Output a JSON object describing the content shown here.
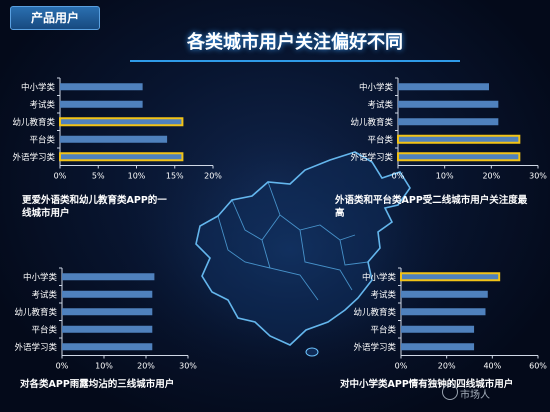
{
  "header": {
    "section_tag": "产品用户",
    "title": "各类城市用户关注偏好不同"
  },
  "captions": {
    "top_left": "更爱外语类和幼儿教育类APP的一线城市用户",
    "top_right": "外语类和平台类APP受二线城市用户关注度最高",
    "bottom_left": "对各类APP雨露均沾的三线城市用户",
    "bottom_right": "对中小学类APP情有独钟的四线城市用户"
  },
  "watermark": "市场人",
  "colors": {
    "bar": "#4f81bd",
    "highlight_border": "#f2c316",
    "axis": "#d0d8e6",
    "text": "#ffffff",
    "title_underline": "#2f9be8"
  },
  "chart_data": [
    {
      "type": "bar",
      "orientation": "horizontal",
      "categories": [
        "中小学类",
        "考试类",
        "幼儿教育类",
        "平台类",
        "外语学习类"
      ],
      "values": [
        10.8,
        10.8,
        16.0,
        14.0,
        16.0
      ],
      "highlight": [
        false,
        false,
        true,
        false,
        true
      ],
      "xlim": [
        0,
        20
      ],
      "ticks": [
        "0%",
        "5%",
        "10%",
        "15%",
        "20%"
      ],
      "tick_values": [
        0,
        5,
        10,
        15,
        20
      ]
    },
    {
      "type": "bar",
      "orientation": "horizontal",
      "categories": [
        "中小学类",
        "考试类",
        "幼儿教育类",
        "平台类",
        "外语学习类"
      ],
      "values": [
        19.5,
        21.5,
        21.5,
        26.0,
        26.0
      ],
      "highlight": [
        false,
        false,
        false,
        true,
        true
      ],
      "xlim": [
        0,
        30
      ],
      "ticks": [
        "0%",
        "10%",
        "20%",
        "30%"
      ],
      "tick_values": [
        0,
        10,
        20,
        30
      ]
    },
    {
      "type": "bar",
      "orientation": "horizontal",
      "categories": [
        "中小学类",
        "考试类",
        "幼儿教育类",
        "平台类",
        "外语学习类"
      ],
      "values": [
        22.0,
        21.5,
        21.5,
        21.5,
        21.5
      ],
      "highlight": [
        false,
        false,
        false,
        false,
        false
      ],
      "xlim": [
        0,
        30
      ],
      "ticks": [
        "0%",
        "10%",
        "20%",
        "30%"
      ],
      "tick_values": [
        0,
        10,
        20,
        30
      ]
    },
    {
      "type": "bar",
      "orientation": "horizontal",
      "categories": [
        "中小学类",
        "考试类",
        "幼儿教育类",
        "平台类",
        "外语学习类"
      ],
      "values": [
        43.0,
        38.0,
        37.0,
        32.0,
        32.0
      ],
      "highlight": [
        true,
        false,
        false,
        false,
        false
      ],
      "xlim": [
        0,
        60
      ],
      "ticks": [
        "0%",
        "20%",
        "40%",
        "60%"
      ],
      "tick_values": [
        0,
        20,
        40,
        60
      ]
    }
  ]
}
